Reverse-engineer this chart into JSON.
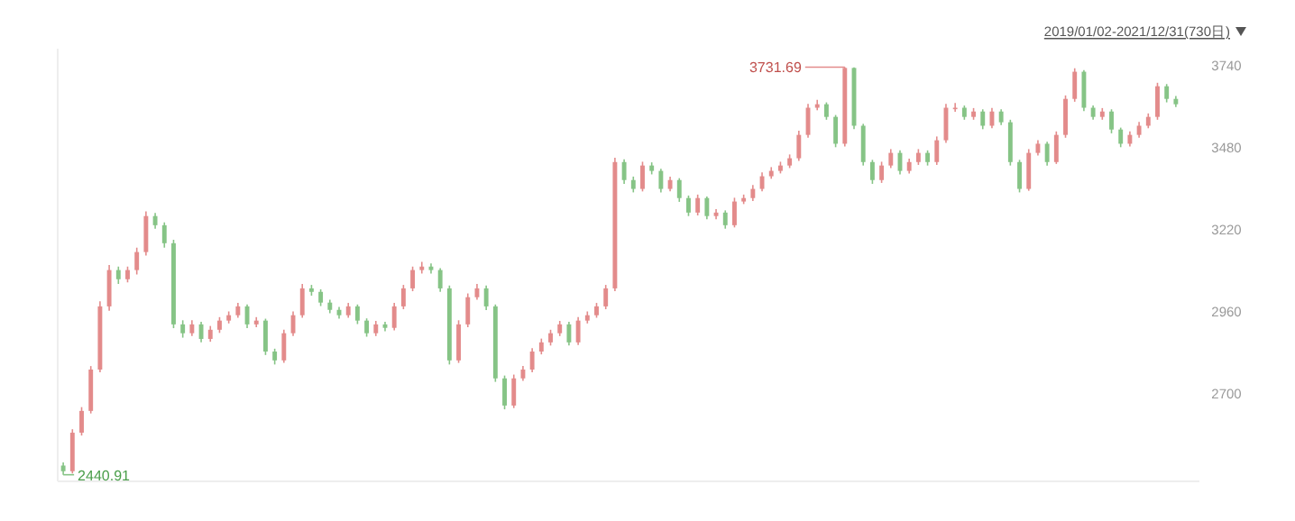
{
  "chart_data": {
    "type": "candlestick",
    "title": "2019/01/02-2021/12/31(730日)",
    "categories": [
      null,
      null,
      null,
      null,
      null,
      null,
      null,
      null,
      null,
      null,
      null,
      null,
      null,
      null,
      null,
      null,
      null,
      null,
      null,
      null,
      null,
      null,
      null,
      null,
      null,
      null,
      null,
      null,
      null,
      null,
      null,
      null,
      null,
      null,
      null,
      null,
      null,
      null,
      null,
      null,
      null,
      null,
      null,
      null,
      null,
      null,
      null,
      null,
      null,
      null,
      null,
      null,
      null,
      null,
      null,
      null,
      null,
      null,
      null,
      null,
      null,
      null,
      null,
      null,
      null,
      null,
      null,
      null,
      null,
      null,
      null,
      null,
      null,
      null,
      null,
      null,
      null,
      null,
      null,
      null,
      null,
      null,
      null,
      null,
      null,
      null,
      null,
      null,
      null,
      null,
      null,
      null,
      null,
      null,
      null,
      null,
      null,
      null,
      null,
      null,
      null,
      null,
      null,
      null,
      null,
      null,
      null,
      null,
      null,
      null,
      null,
      null,
      null,
      null,
      null,
      null,
      null,
      null,
      null,
      null,
      null,
      null
    ],
    "ohlc": [
      [
        2470,
        2480,
        2440.91,
        2452
      ],
      [
        2452,
        2585,
        2445,
        2574
      ],
      [
        2574,
        2655,
        2565,
        2643
      ],
      [
        2643,
        2785,
        2635,
        2774
      ],
      [
        2774,
        2990,
        2765,
        2974
      ],
      [
        2974,
        3105,
        2960,
        3089
      ],
      [
        3089,
        3100,
        3045,
        3060
      ],
      [
        3060,
        3100,
        3050,
        3089
      ],
      [
        3089,
        3160,
        3075,
        3146
      ],
      [
        3146,
        3275,
        3135,
        3260
      ],
      [
        3260,
        3270,
        3220,
        3231
      ],
      [
        3231,
        3240,
        3160,
        3174
      ],
      [
        3174,
        3185,
        2905,
        2917
      ],
      [
        2917,
        2930,
        2875,
        2889
      ],
      [
        2889,
        2930,
        2880,
        2917
      ],
      [
        2917,
        2925,
        2860,
        2871
      ],
      [
        2871,
        2912,
        2862,
        2900
      ],
      [
        2900,
        2940,
        2890,
        2929
      ],
      [
        2929,
        2958,
        2920,
        2946
      ],
      [
        2946,
        2985,
        2938,
        2974
      ],
      [
        2974,
        2980,
        2905,
        2917
      ],
      [
        2917,
        2940,
        2908,
        2929
      ],
      [
        2929,
        2935,
        2820,
        2831
      ],
      [
        2831,
        2840,
        2790,
        2803
      ],
      [
        2803,
        2900,
        2795,
        2889
      ],
      [
        2889,
        2958,
        2880,
        2946
      ],
      [
        2946,
        3045,
        2938,
        3031
      ],
      [
        3031,
        3042,
        3008,
        3020
      ],
      [
        3020,
        3028,
        2975,
        2986
      ],
      [
        2986,
        2995,
        2952,
        2963
      ],
      [
        2963,
        2972,
        2935,
        2946
      ],
      [
        2946,
        2985,
        2938,
        2974
      ],
      [
        2974,
        2980,
        2918,
        2929
      ],
      [
        2929,
        2936,
        2878,
        2889
      ],
      [
        2889,
        2928,
        2880,
        2917
      ],
      [
        2917,
        2925,
        2895,
        2906
      ],
      [
        2906,
        2985,
        2898,
        2974
      ],
      [
        2974,
        3042,
        2965,
        3031
      ],
      [
        3031,
        3100,
        3022,
        3089
      ],
      [
        3089,
        3115,
        3078,
        3100
      ],
      [
        3100,
        3110,
        3078,
        3089
      ],
      [
        3089,
        3095,
        3020,
        3031
      ],
      [
        3031,
        3040,
        2790,
        2803
      ],
      [
        2803,
        2930,
        2795,
        2917
      ],
      [
        2917,
        3015,
        2908,
        3003
      ],
      [
        3003,
        3045,
        2995,
        3031
      ],
      [
        3031,
        3040,
        2962,
        2974
      ],
      [
        2974,
        2980,
        2735,
        2746
      ],
      [
        2746,
        2755,
        2648,
        2660
      ],
      [
        2660,
        2758,
        2652,
        2746
      ],
      [
        2746,
        2785,
        2738,
        2774
      ],
      [
        2774,
        2842,
        2765,
        2831
      ],
      [
        2831,
        2872,
        2822,
        2860
      ],
      [
        2860,
        2900,
        2850,
        2889
      ],
      [
        2889,
        2928,
        2880,
        2917
      ],
      [
        2917,
        2925,
        2850,
        2860
      ],
      [
        2860,
        2940,
        2852,
        2929
      ],
      [
        2929,
        2958,
        2920,
        2946
      ],
      [
        2946,
        2985,
        2938,
        2974
      ],
      [
        2974,
        3042,
        2965,
        3031
      ],
      [
        3031,
        3445,
        3022,
        3431
      ],
      [
        3431,
        3440,
        3362,
        3374
      ],
      [
        3374,
        3385,
        3335,
        3346
      ],
      [
        3346,
        3432,
        3338,
        3420
      ],
      [
        3420,
        3430,
        3392,
        3403
      ],
      [
        3403,
        3410,
        3335,
        3346
      ],
      [
        3346,
        3385,
        3338,
        3374
      ],
      [
        3374,
        3380,
        3305,
        3317
      ],
      [
        3317,
        3325,
        3260,
        3271
      ],
      [
        3271,
        3328,
        3262,
        3317
      ],
      [
        3317,
        3322,
        3250,
        3260
      ],
      [
        3260,
        3282,
        3250,
        3271
      ],
      [
        3271,
        3278,
        3220,
        3231
      ],
      [
        3231,
        3318,
        3224,
        3306
      ],
      [
        3306,
        3328,
        3298,
        3317
      ],
      [
        3317,
        3358,
        3308,
        3346
      ],
      [
        3346,
        3398,
        3338,
        3386
      ],
      [
        3386,
        3415,
        3378,
        3403
      ],
      [
        3403,
        3432,
        3395,
        3420
      ],
      [
        3420,
        3455,
        3412,
        3443
      ],
      [
        3443,
        3530,
        3435,
        3517
      ],
      [
        3517,
        3615,
        3508,
        3603
      ],
      [
        3603,
        3628,
        3595,
        3614
      ],
      [
        3614,
        3620,
        3565,
        3574
      ],
      [
        3574,
        3580,
        3478,
        3489
      ],
      [
        3489,
        3731.69,
        3480,
        3729
      ],
      [
        3729,
        3731,
        3535,
        3546
      ],
      [
        3546,
        3552,
        3420,
        3431
      ],
      [
        3431,
        3438,
        3362,
        3374
      ],
      [
        3374,
        3432,
        3365,
        3420
      ],
      [
        3420,
        3472,
        3412,
        3460
      ],
      [
        3460,
        3468,
        3392,
        3403
      ],
      [
        3403,
        3442,
        3395,
        3431
      ],
      [
        3431,
        3472,
        3422,
        3460
      ],
      [
        3460,
        3468,
        3420,
        3431
      ],
      [
        3431,
        3512,
        3422,
        3500
      ],
      [
        3500,
        3615,
        3492,
        3603
      ],
      [
        3603,
        3618,
        3590,
        3603
      ],
      [
        3603,
        3610,
        3565,
        3574
      ],
      [
        3574,
        3602,
        3565,
        3591
      ],
      [
        3591,
        3598,
        3535,
        3546
      ],
      [
        3546,
        3602,
        3538,
        3591
      ],
      [
        3591,
        3598,
        3548,
        3557
      ],
      [
        3557,
        3565,
        3420,
        3431
      ],
      [
        3431,
        3438,
        3335,
        3346
      ],
      [
        3346,
        3472,
        3340,
        3460
      ],
      [
        3460,
        3500,
        3452,
        3489
      ],
      [
        3489,
        3495,
        3420,
        3431
      ],
      [
        3431,
        3528,
        3425,
        3517
      ],
      [
        3517,
        3642,
        3508,
        3631
      ],
      [
        3631,
        3728,
        3622,
        3717
      ],
      [
        3717,
        3722,
        3592,
        3603
      ],
      [
        3603,
        3610,
        3565,
        3574
      ],
      [
        3574,
        3602,
        3565,
        3591
      ],
      [
        3591,
        3598,
        3522,
        3534
      ],
      [
        3534,
        3540,
        3478,
        3489
      ],
      [
        3489,
        3528,
        3480,
        3517
      ],
      [
        3517,
        3558,
        3508,
        3546
      ],
      [
        3546,
        3585,
        3538,
        3574
      ],
      [
        3574,
        3682,
        3565,
        3671
      ],
      [
        3671,
        3678,
        3620,
        3631
      ],
      [
        3631,
        3640,
        3605,
        3614
      ]
    ],
    "colors": [
      "#86c486",
      "#e38b8b",
      "#e38b8b",
      "#e38b8b",
      "#e38b8b",
      "#e38b8b",
      "#86c486",
      "#e38b8b",
      "#e38b8b",
      "#e38b8b",
      "#86c486",
      "#86c486",
      "#86c486",
      "#86c486",
      "#e38b8b",
      "#86c486",
      "#e38b8b",
      "#e38b8b",
      "#e38b8b",
      "#e38b8b",
      "#86c486",
      "#e38b8b",
      "#86c486",
      "#86c486",
      "#e38b8b",
      "#e38b8b",
      "#e38b8b",
      "#86c486",
      "#86c486",
      "#86c486",
      "#86c486",
      "#e38b8b",
      "#86c486",
      "#86c486",
      "#e38b8b",
      "#86c486",
      "#e38b8b",
      "#e38b8b",
      "#e38b8b",
      "#e38b8b",
      "#86c486",
      "#86c486",
      "#86c486",
      "#e38b8b",
      "#e38b8b",
      "#e38b8b",
      "#86c486",
      "#86c486",
      "#86c486",
      "#e38b8b",
      "#e38b8b",
      "#e38b8b",
      "#e38b8b",
      "#e38b8b",
      "#e38b8b",
      "#86c486",
      "#e38b8b",
      "#e38b8b",
      "#e38b8b",
      "#e38b8b",
      "#e38b8b",
      "#86c486",
      "#86c486",
      "#e38b8b",
      "#86c486",
      "#86c486",
      "#e38b8b",
      "#86c486",
      "#86c486",
      "#e38b8b",
      "#86c486",
      "#e38b8b",
      "#86c486",
      "#e38b8b",
      "#e38b8b",
      "#e38b8b",
      "#e38b8b",
      "#e38b8b",
      "#e38b8b",
      "#e38b8b",
      "#e38b8b",
      "#e38b8b",
      "#e38b8b",
      "#86c486",
      "#86c486",
      "#e38b8b",
      "#86c486",
      "#86c486",
      "#86c486",
      "#e38b8b",
      "#e38b8b",
      "#86c486",
      "#e38b8b",
      "#e38b8b",
      "#86c486",
      "#e38b8b",
      "#e38b8b",
      "#e38b8b",
      "#86c486",
      "#e38b8b",
      "#86c486",
      "#e38b8b",
      "#86c486",
      "#86c486",
      "#86c486",
      "#e38b8b",
      "#e38b8b",
      "#86c486",
      "#e38b8b",
      "#e38b8b",
      "#e38b8b",
      "#86c486",
      "#86c486",
      "#e38b8b",
      "#86c486",
      "#86c486",
      "#e38b8b",
      "#e38b8b",
      "#e38b8b",
      "#e38b8b",
      "#86c486",
      "#86c486"
    ],
    "ylim": [
      2420,
      3790
    ],
    "yticks": [
      2700,
      2960,
      3220,
      3480,
      3740
    ],
    "annotations": [
      "3731.69",
      "2440.91"
    ]
  }
}
